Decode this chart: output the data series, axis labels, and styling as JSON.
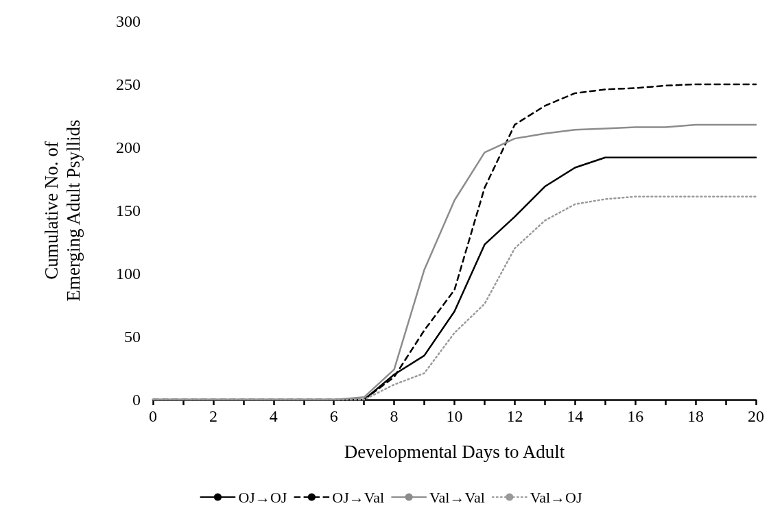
{
  "chart_data": {
    "type": "line",
    "xlabel": "Developmental Days to Adult",
    "ylabel": "Cumulative No. of\nEmerging Adult Psyllids",
    "x": [
      0,
      1,
      2,
      3,
      4,
      5,
      6,
      7,
      8,
      9,
      10,
      11,
      12,
      13,
      14,
      15,
      16,
      17,
      18,
      19,
      20
    ],
    "series": [
      {
        "name": "OJ→OJ",
        "color": "#000000",
        "line_style": "solid",
        "values": [
          0,
          0,
          0,
          0,
          0,
          0,
          0,
          0,
          20,
          35,
          70,
          123,
          145,
          169,
          184,
          192,
          192,
          192,
          192,
          192,
          192
        ]
      },
      {
        "name": "OJ→Val",
        "color": "#000000",
        "line_style": "dashed",
        "values": [
          0,
          0,
          0,
          0,
          0,
          0,
          0,
          0,
          18,
          55,
          87,
          168,
          218,
          233,
          243,
          246,
          247,
          249,
          250,
          250,
          250
        ]
      },
      {
        "name": "Val→Val",
        "color": "#8c8c8c",
        "line_style": "solid",
        "values": [
          0,
          0,
          0,
          0,
          0,
          0,
          0,
          2,
          24,
          103,
          158,
          196,
          207,
          211,
          214,
          215,
          216,
          216,
          218,
          218,
          218
        ]
      },
      {
        "name": "Val→OJ",
        "color": "#999999",
        "line_style": "dotted",
        "values": [
          0,
          0,
          0,
          0,
          0,
          0,
          0,
          0,
          12,
          21,
          53,
          76,
          120,
          142,
          155,
          159,
          161,
          161,
          161,
          161,
          161
        ]
      }
    ],
    "xlim": [
      0,
      20
    ],
    "xticks": [
      0,
      {
        "value": 1,
        "label": null
      },
      2,
      {
        "value": 3,
        "label": null
      },
      4,
      {
        "value": 5,
        "label": null
      },
      6,
      {
        "value": 7,
        "label": null
      },
      8,
      {
        "value": 9,
        "label": null
      },
      10,
      {
        "value": 11,
        "label": null
      },
      12,
      {
        "value": 13,
        "label": null
      },
      14,
      {
        "value": 15,
        "label": null
      },
      16,
      {
        "value": 17,
        "label": null
      },
      18,
      {
        "value": 19,
        "label": null
      },
      20
    ],
    "ylim": [
      0,
      300
    ],
    "yticks": [
      0,
      50,
      100,
      150,
      200,
      250,
      300
    ],
    "grid": false,
    "legend": "bottom",
    "marker": "none"
  }
}
